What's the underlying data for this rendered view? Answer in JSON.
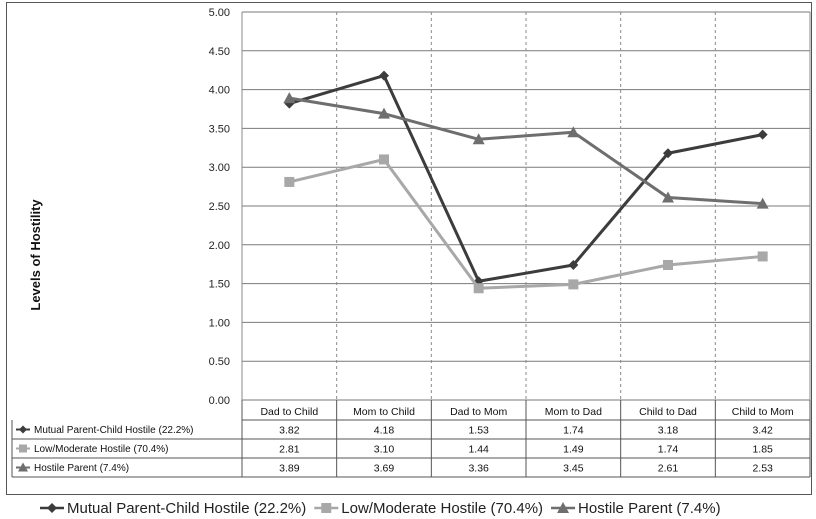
{
  "chart_data": {
    "type": "line",
    "ylabel": "Levels of Hostility",
    "ylim": [
      0,
      5
    ],
    "yticks": [
      "0.00",
      "0.50",
      "1.00",
      "1.50",
      "2.00",
      "2.50",
      "3.00",
      "3.50",
      "4.00",
      "4.50",
      "5.00"
    ],
    "categories": [
      "Dad to Child",
      "Mom to Child",
      "Dad to Mom",
      "Mom to Dad",
      "Child to Dad",
      "Child to Mom"
    ],
    "grid": "vertical dashed, horizontal solid",
    "legend_position": "bottom",
    "series": [
      {
        "name": "Mutual Parent-Child Hostile (22.2%)",
        "marker": "diamond",
        "color": "#3c3c3c",
        "values": [
          3.82,
          4.18,
          1.53,
          1.74,
          3.18,
          3.42
        ],
        "labels": [
          "3.82",
          "4.18",
          "1.53",
          "1.74",
          "3.18",
          "3.42"
        ]
      },
      {
        "name": "Low/Moderate Hostile (70.4%)",
        "marker": "square",
        "color": "#a8a8a8",
        "values": [
          2.81,
          3.1,
          1.44,
          1.49,
          1.74,
          1.85
        ],
        "labels": [
          "2.81",
          "3.10",
          "1.44",
          "1.49",
          "1.74",
          "1.85"
        ]
      },
      {
        "name": "Hostile Parent (7.4%)",
        "marker": "triangle",
        "color": "#6e6e6e",
        "values": [
          3.89,
          3.69,
          3.36,
          3.45,
          2.61,
          2.53
        ],
        "labels": [
          "3.89",
          "3.69",
          "3.36",
          "3.45",
          "2.61",
          "2.53"
        ]
      }
    ]
  }
}
